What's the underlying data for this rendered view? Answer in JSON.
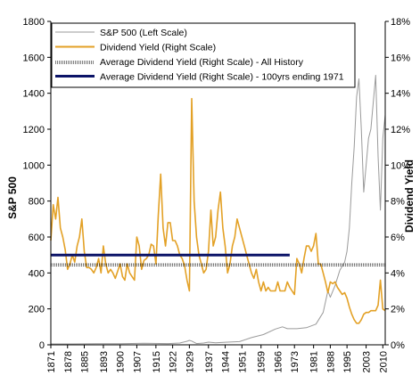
{
  "chart_data": {
    "type": "line",
    "xlabel": "",
    "ylabel_left": "S&P 500",
    "ylabel_right": "Dividend Yield",
    "xlim": [
      1871,
      2011
    ],
    "ylim_left": [
      0,
      1800
    ],
    "ylim_right": [
      0,
      18
    ],
    "x_ticks": [
      "1871",
      "1878",
      "1885",
      "1893",
      "1900",
      "1907",
      "1915",
      "1922",
      "1929",
      "1937",
      "1944",
      "1951",
      "1959",
      "1966",
      "1973",
      "1981",
      "1988",
      "1995",
      "2003",
      "2010"
    ],
    "y_left_ticks": [
      "0",
      "200",
      "400",
      "600",
      "800",
      "1000",
      "1200",
      "1400",
      "1600",
      "1800"
    ],
    "y_right_ticks": [
      "0%",
      "2%",
      "4%",
      "6%",
      "8%",
      "10%",
      "12%",
      "14%",
      "16%",
      "18%"
    ],
    "grid": false,
    "legend_position": "top-left",
    "series": [
      {
        "name": "S&P 500 (Left Scale)",
        "axis": "left",
        "color": "#9a9a9a",
        "x": [
          1871,
          1880,
          1890,
          1900,
          1910,
          1920,
          1925,
          1928,
          1929,
          1930,
          1932,
          1935,
          1937,
          1940,
          1945,
          1950,
          1955,
          1960,
          1965,
          1968,
          1970,
          1974,
          1978,
          1982,
          1985,
          1987,
          1988,
          1990,
          1992,
          1994,
          1995,
          1996,
          1997,
          1998,
          1999,
          2000,
          2001,
          2002,
          2003,
          2004,
          2005,
          2006,
          2007,
          2008,
          2009,
          2010,
          2011
        ],
        "values": [
          5,
          5,
          6,
          6,
          9,
          7,
          10,
          20,
          25,
          21,
          7,
          10,
          15,
          11,
          15,
          18,
          40,
          57,
          88,
          100,
          90,
          90,
          95,
          115,
          180,
          300,
          265,
          330,
          415,
          460,
          520,
          650,
          900,
          1100,
          1380,
          1480,
          1200,
          850,
          1000,
          1150,
          1200,
          1350,
          1500,
          1050,
          750,
          1150,
          1280
        ]
      },
      {
        "name": "Dividend Yield (Right Scale)",
        "axis": "right",
        "color": "#e3a126",
        "x": [
          1871,
          1872,
          1873,
          1874,
          1875,
          1876,
          1877,
          1878,
          1879,
          1880,
          1881,
          1882,
          1883,
          1884,
          1885,
          1886,
          1887,
          1888,
          1889,
          1890,
          1891,
          1892,
          1893,
          1894,
          1895,
          1896,
          1897,
          1898,
          1899,
          1900,
          1901,
          1902,
          1903,
          1904,
          1905,
          1906,
          1907,
          1908,
          1909,
          1910,
          1911,
          1912,
          1913,
          1914,
          1915,
          1916,
          1917,
          1918,
          1919,
          1920,
          1921,
          1922,
          1923,
          1924,
          1925,
          1926,
          1927,
          1928,
          1929,
          1930,
          1931,
          1932,
          1933,
          1934,
          1935,
          1936,
          1937,
          1938,
          1939,
          1940,
          1941,
          1942,
          1943,
          1944,
          1945,
          1946,
          1947,
          1948,
          1949,
          1950,
          1951,
          1952,
          1953,
          1954,
          1955,
          1956,
          1957,
          1958,
          1959,
          1960,
          1961,
          1962,
          1963,
          1964,
          1965,
          1966,
          1967,
          1968,
          1969,
          1970,
          1971,
          1972,
          1973,
          1974,
          1975,
          1976,
          1977,
          1978,
          1979,
          1980,
          1981,
          1982,
          1983,
          1984,
          1985,
          1986,
          1987,
          1988,
          1989,
          1990,
          1991,
          1992,
          1993,
          1994,
          1995,
          1996,
          1997,
          1998,
          1999,
          2000,
          2001,
          2002,
          2003,
          2004,
          2005,
          2006,
          2007,
          2008,
          2009,
          2010,
          2011
        ],
        "values": [
          5.8,
          7.8,
          7.0,
          8.2,
          6.5,
          6.0,
          5.3,
          4.2,
          4.5,
          5.0,
          4.6,
          5.5,
          6.0,
          7.0,
          5.2,
          4.3,
          4.3,
          4.2,
          4.0,
          4.3,
          4.8,
          4.0,
          5.5,
          4.5,
          4.0,
          4.2,
          4.0,
          3.7,
          4.1,
          4.5,
          3.8,
          3.6,
          4.5,
          4.0,
          3.8,
          3.6,
          6.0,
          5.5,
          4.2,
          4.7,
          4.8,
          5.0,
          5.6,
          5.5,
          4.5,
          7.2,
          9.5,
          6.5,
          5.5,
          6.8,
          6.8,
          5.8,
          5.8,
          5.5,
          5.0,
          4.8,
          4.4,
          3.6,
          3.0,
          13.7,
          8.0,
          6.0,
          5.0,
          4.5,
          4.0,
          4.2,
          5.2,
          7.5,
          5.5,
          6.0,
          7.5,
          8.5,
          6.5,
          5.5,
          4.0,
          4.5,
          5.5,
          6.0,
          7.0,
          6.5,
          6.0,
          5.5,
          5.0,
          4.5,
          4.0,
          3.7,
          4.2,
          3.5,
          3.0,
          3.5,
          3.0,
          3.2,
          3.0,
          3.0,
          3.0,
          3.5,
          3.0,
          3.0,
          3.0,
          3.5,
          3.2,
          3.0,
          2.8,
          4.8,
          4.5,
          4.0,
          4.8,
          5.5,
          5.5,
          5.2,
          5.5,
          6.2,
          4.5,
          4.5,
          4.0,
          3.5,
          2.9,
          3.5,
          3.4,
          3.5,
          3.2,
          3.0,
          2.8,
          2.9,
          2.6,
          2.1,
          1.7,
          1.4,
          1.2,
          1.2,
          1.4,
          1.7,
          1.8,
          1.8,
          1.9,
          1.9,
          1.9,
          2.2,
          3.6,
          2.0,
          1.9
        ]
      },
      {
        "name": "Average Dividend Yield (Right Scale) - All History",
        "axis": "right",
        "style": "dotted",
        "color": "#000000",
        "x": [
          1871,
          2011
        ],
        "values": [
          4.5,
          4.5
        ]
      },
      {
        "name": "Average Dividend Yield (Right Scale) - 100yrs ending 1971",
        "axis": "right",
        "color": "#0c1468",
        "x": [
          1871,
          1971
        ],
        "values": [
          5.0,
          5.0
        ]
      }
    ]
  }
}
